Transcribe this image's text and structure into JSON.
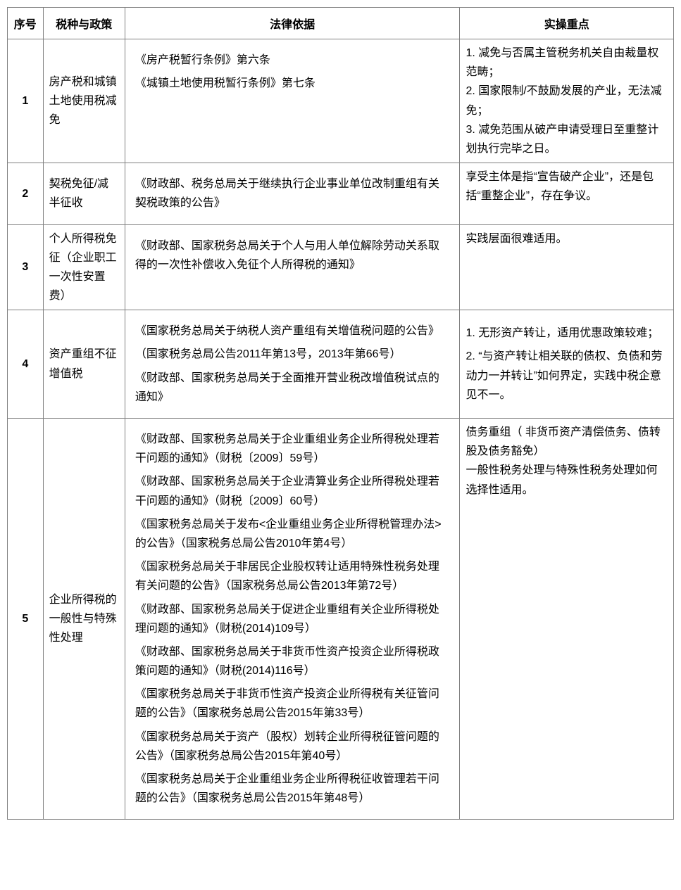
{
  "table": {
    "headers": {
      "seq": "序号",
      "policy": "税种与政策",
      "legal": "法律依据",
      "practice": "实操重点"
    },
    "rows": [
      {
        "seq": "1",
        "policy": "房产税和城镇土地使用税减免",
        "legal": [
          "《房产税暂行条例》第六条",
          "《城镇土地使用税暂行条例》第七条"
        ],
        "practice": [
          "1. 减免与否属主管税务机关自由裁量权范畴；",
          "2. 国家限制/不鼓励发展的产业，无法减免；",
          "3. 减免范围从破产申请受理日至重整计划执行完毕之日。"
        ]
      },
      {
        "seq": "2",
        "policy": "契税免征/减半征收",
        "legal": [
          "《财政部、税务总局关于继续执行企业事业单位改制重组有关契税政策的公告》"
        ],
        "practice": [
          "享受主体是指“宣告破产企业”，还是包括“重整企业”，存在争议。"
        ]
      },
      {
        "seq": "3",
        "policy": "个人所得税免征（企业职工一次性安置费）",
        "legal": [
          "《财政部、国家税务总局关于个人与用人单位解除劳动关系取得的一次性补偿收入免征个人所得税的通知》"
        ],
        "practice": [
          "实践层面很难适用。"
        ]
      },
      {
        "seq": "4",
        "policy": "资产重组不征增值税",
        "legal": [
          "《国家税务总局关于纳税人资产重组有关增值税问题的公告》",
          "（国家税务总局公告2011年第13号，2013年第66号）",
          "《财政部、国家税务总局关于全面推开营业税改增值税试点的通知》"
        ],
        "practice": [
          "1. 无形资产转让，适用优惠政策较难；",
          "2. “与资产转让相关联的债权、负债和劳动力一并转让”如何界定，实践中税企意见不一。"
        ]
      },
      {
        "seq": "5",
        "policy": "企业所得税的一般性与特殊性处理",
        "legal": [
          "《财政部、国家税务总局关于企业重组业务企业所得税处理若干问题的通知》（财税〔2009〕59号）",
          "《财政部、国家税务总局关于企业清算业务企业所得税处理若干问题的通知》（财税〔2009〕60号）",
          "《国家税务总局关于发布<企业重组业务企业所得税管理办法>的公告》（国家税务总局公告2010年第4号）",
          "《国家税务总局关于非居民企业股权转让适用特殊性税务处理有关问题的公告》（国家税务总局公告2013年第72号）",
          "《财政部、国家税务总局关于促进企业重组有关企业所得税处理问题的通知》（财税(2014)109号）",
          "《财政部、国家税务总局关于非货币性资产投资企业所得税政策问题的通知》（财税(2014)116号）",
          "《国家税务总局关于非货币性资产投资企业所得税有关征管问题的公告》（国家税务总局公告2015年第33号）",
          "《国家税务总局关于资产（股权）划转企业所得税征管问题的公告》（国家税务总局公告2015年第40号）",
          "《国家税务总局关于企业重组业务企业所得税征收管理若干问题的公告》（国家税务总局公告2015年第48号）"
        ],
        "practice": [
          "债务重组（ 非货币资产清偿债务、债转股及债务豁免）",
          "一般性税务处理与特殊性税务处理如何选择性适用。"
        ]
      }
    ],
    "styling": {
      "border_color": "#808080",
      "background_color": "#ffffff",
      "text_color": "#000000",
      "font_size": 16,
      "line_height": 1.7,
      "col_widths": {
        "seq": 50,
        "policy": 115,
        "legal": 470,
        "practice": 300
      }
    }
  }
}
